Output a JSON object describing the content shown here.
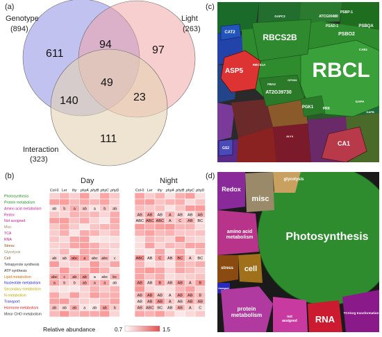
{
  "panels": {
    "a": "(a)",
    "b": "(b)",
    "c": "(c)",
    "d": "(d)"
  },
  "venn": {
    "sets": [
      {
        "name": "Genotype",
        "count": "(894)",
        "color": "#8f8fe6"
      },
      {
        "name": "Light",
        "count": "(263)",
        "color": "#f2a0a0"
      },
      {
        "name": "Interaction",
        "count": "(323)",
        "color": "#e4d2b4"
      }
    ],
    "regions": {
      "g_only": "611",
      "l_only": "97",
      "i_only": "111",
      "g_l": "94",
      "g_i": "140",
      "l_i": "23",
      "all": "49"
    }
  },
  "heatmap": {
    "day_label": "Day",
    "night_label": "Night",
    "columns": [
      "Col-0",
      "Ler",
      "lhy",
      "phyA",
      "phyB",
      "phyC",
      "phyD"
    ],
    "rows": [
      {
        "name": "Photosynthesis",
        "color": "#1e8c1e"
      },
      {
        "name": "Protein metabolism",
        "color": "#1e8c1e"
      },
      {
        "name": "Amino acid metabolism",
        "color": "#c01a8a"
      },
      {
        "name": "Redox",
        "color": "#c01a8a"
      },
      {
        "name": "Not assigned",
        "color": "#c01a8a"
      },
      {
        "name": "Misc",
        "color": "#9a8a6a"
      },
      {
        "name": "TCA",
        "color": "#c01a8a"
      },
      {
        "name": "RNA",
        "color": "#c01a8a"
      },
      {
        "name": "Stress",
        "color": "#8a4a10"
      },
      {
        "name": "Glycolysis",
        "color": "#9a8a6a"
      },
      {
        "name": "Cell",
        "color": "#8a4a10"
      },
      {
        "name": "Tetrapyrrole synthesis",
        "color": "#333333"
      },
      {
        "name": "ATP synthesis",
        "color": "#333333"
      },
      {
        "name": "Lipid metabolism",
        "color": "#d46a10"
      },
      {
        "name": "Nucleotide metabolism",
        "color": "#1a1acc"
      },
      {
        "name": "Secondary metabolism",
        "color": "#b8a800"
      },
      {
        "name": "N-metabolism",
        "color": "#b8a800"
      },
      {
        "name": "Transport",
        "color": "#1a1acc"
      },
      {
        "name": "Hormone metabolism",
        "color": "#cc1a1a"
      },
      {
        "name": "Minor CHO metabolism",
        "color": "#333333"
      }
    ],
    "day_letters": [
      [],
      [],
      [
        "ab",
        "b",
        "a",
        "ab",
        "a",
        "b",
        "ab"
      ],
      [],
      [],
      [],
      [],
      [],
      [],
      [],
      [
        "ab",
        "ab",
        "abc",
        "a",
        "abc",
        "abc",
        "c"
      ],
      [],
      [],
      [
        "abc",
        "c",
        "ab",
        "ab",
        "a",
        "abc",
        "bc"
      ],
      [
        "a",
        "b",
        "b",
        "ab",
        "a",
        "a",
        "ab"
      ],
      [],
      [],
      [],
      [
        "ab",
        "ab",
        "ab",
        "a",
        "ab",
        "ab",
        "b"
      ],
      []
    ],
    "night_letters": [
      [],
      [],
      [],
      [
        "AB",
        "AB",
        "AB",
        "A",
        "AB",
        "AB",
        "AB"
      ],
      [
        "ABC",
        "ABC",
        "ABC",
        "A",
        "C",
        "AB",
        "BC"
      ],
      [],
      [],
      [],
      [],
      [],
      [
        "ABC",
        "AB",
        "C",
        "AB",
        "BC",
        "A",
        "BC"
      ],
      [],
      [],
      [],
      [
        "AB",
        "AB",
        "B",
        "AB",
        "AB",
        "A",
        "B"
      ],
      [],
      [
        "AB",
        "AB",
        "AB",
        "A",
        "AB",
        "AB",
        "B"
      ],
      [
        "AB",
        "AB",
        "AB",
        "A",
        "AB",
        "AB",
        "AB"
      ],
      [
        "AB",
        "ABC",
        "BC",
        "AB",
        "AB",
        "A",
        "C"
      ],
      []
    ],
    "legend_label": "Relative abundance",
    "legend_min": "0.7",
    "legend_max": "1.5"
  },
  "treemap_c": {
    "labels": [
      "RBCL",
      "RBCS2B",
      "ASP5",
      "AT2G39730",
      "RBCS1A",
      "FBA2",
      "PGK1",
      "PRK",
      "CA1",
      "GAPA",
      "GAPB",
      "CAT2",
      "GS2",
      "PSBO2",
      "PSBQA",
      "PSBP-1",
      "PSAD-1",
      "ATCG00480",
      "CAB1",
      "GAPC2",
      "ALY4",
      "OPHN1"
    ]
  },
  "treemap_d": {
    "labels": [
      "Photosynthesis",
      "misc",
      "Redox",
      "glycolysis",
      "amino acid metabolism",
      "stress",
      "cell",
      "transport",
      "protein metabolism",
      "not assigned",
      "RNA",
      "TCA/org transformation"
    ]
  }
}
